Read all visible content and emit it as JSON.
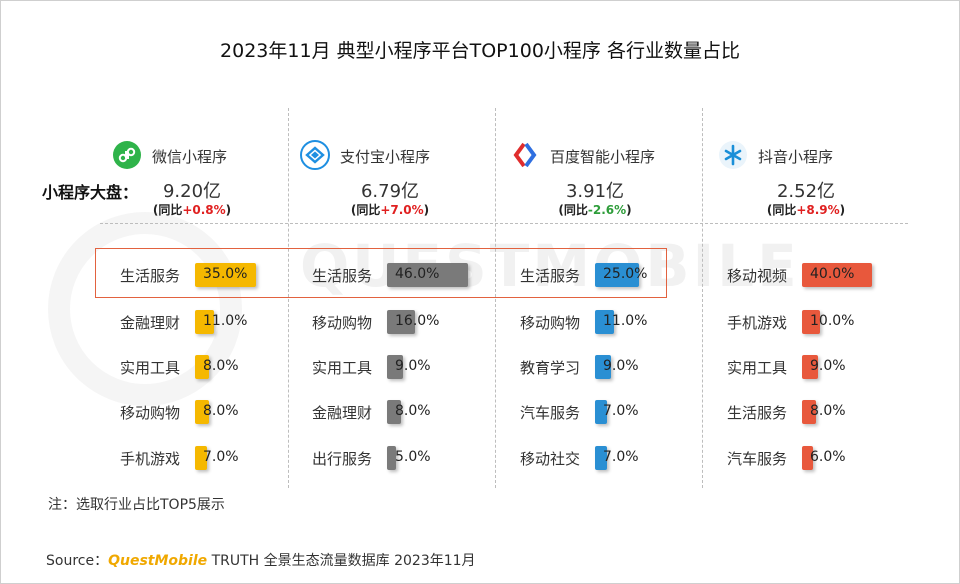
{
  "title": "2023年11月 典型小程序平台TOP100小程序 各行业数量占比",
  "dapan_label": "小程序大盘：",
  "growth_prefix": "(同比",
  "growth_suffix": ")",
  "watermark": "QUESTMOBILE",
  "note": "注：选取行业占比TOP5展示",
  "source": {
    "prefix": "Source：",
    "brand": "QuestMobile",
    "rest": " TRUTH 全景生态流量数据库 2023年11月"
  },
  "colors": {
    "wechat": "#f5b800",
    "alipay": "#7a7a7a",
    "baidu": "#2a8fd3",
    "douyin": "#e8583c",
    "highlight": "#e2623f"
  },
  "chart_data": {
    "type": "bar",
    "orientation": "horizontal",
    "unit": "%",
    "panels": [
      {
        "platform": "微信小程序",
        "icon": "wechat-miniprogram-icon",
        "total": "9.20亿",
        "yoy": "+0.8%",
        "categories": [
          "生活服务",
          "金融理财",
          "实用工具",
          "移动购物",
          "手机游戏"
        ],
        "values": [
          35.0,
          11.0,
          8.0,
          8.0,
          7.0
        ],
        "labels": [
          "35.0%",
          "11.0%",
          "8.0%",
          "8.0%",
          "7.0%"
        ]
      },
      {
        "platform": "支付宝小程序",
        "icon": "alipay-miniprogram-icon",
        "total": "6.79亿",
        "yoy": "+7.0%",
        "categories": [
          "生活服务",
          "移动购物",
          "实用工具",
          "金融理财",
          "出行服务"
        ],
        "values": [
          46.0,
          16.0,
          9.0,
          8.0,
          5.0
        ],
        "labels": [
          "46.0%",
          "16.0%",
          "9.0%",
          "8.0%",
          "5.0%"
        ]
      },
      {
        "platform": "百度智能小程序",
        "icon": "baidu-smart-miniprogram-icon",
        "total": "3.91亿",
        "yoy": "-2.6%",
        "categories": [
          "生活服务",
          "移动购物",
          "教育学习",
          "汽车服务",
          "移动社交"
        ],
        "values": [
          25.0,
          11.0,
          9.0,
          7.0,
          7.0
        ],
        "labels": [
          "25.0%",
          "11.0%",
          "9.0%",
          "7.0%",
          "7.0%"
        ]
      },
      {
        "platform": "抖音小程序",
        "icon": "douyin-miniprogram-icon",
        "total": "2.52亿",
        "yoy": "+8.9%",
        "categories": [
          "移动视频",
          "手机游戏",
          "实用工具",
          "生活服务",
          "汽车服务"
        ],
        "values": [
          40.0,
          10.0,
          9.0,
          8.0,
          6.0
        ],
        "labels": [
          "40.0%",
          "10.0%",
          "9.0%",
          "8.0%",
          "6.0%"
        ]
      }
    ]
  }
}
